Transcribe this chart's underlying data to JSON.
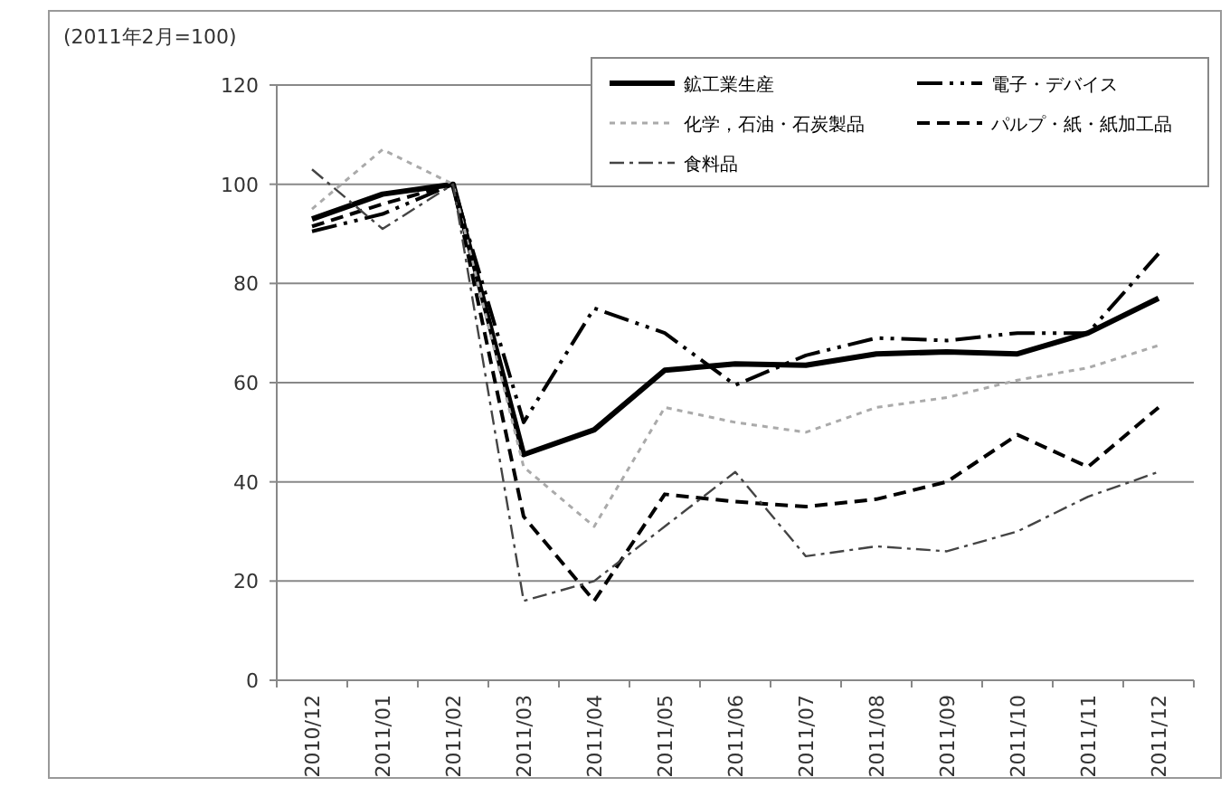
{
  "chart_data": {
    "type": "line",
    "ylabel": "(2011年2月=100)",
    "categories": [
      "2010/12",
      "2011/01",
      "2011/02",
      "2011/03",
      "2011/04",
      "2011/05",
      "2011/06",
      "2011/07",
      "2011/08",
      "2011/09",
      "2011/10",
      "2011/11",
      "2011/12"
    ],
    "series": [
      {
        "name": "鉱工業生産",
        "color": "#000000",
        "line_style": "solid",
        "values": [
          93,
          98,
          100,
          45.5,
          50.5,
          62.5,
          63.8,
          63.5,
          65.8,
          66.2,
          65.8,
          70,
          77
        ]
      },
      {
        "name": "電子・デバイス",
        "color": "#000000",
        "line_style": "dashdotdot",
        "values": [
          90.5,
          94,
          100,
          52,
          75,
          70,
          59.5,
          65.5,
          69,
          68.5,
          70,
          70,
          86
        ]
      },
      {
        "name": "化学，石油・石炭製品",
        "color": "#aaaaaa",
        "line_style": "dotted",
        "values": [
          95,
          107,
          100,
          43,
          31,
          55,
          52,
          50,
          55,
          57,
          60.5,
          63,
          67.5
        ]
      },
      {
        "name": "パルプ・紙・紙加工品",
        "color": "#000000",
        "line_style": "dashed",
        "values": [
          91.5,
          96,
          100,
          33,
          16,
          37.5,
          36,
          35,
          36.5,
          40,
          49.5,
          43,
          55
        ]
      },
      {
        "name": "食料品",
        "color": "#444444",
        "line_style": "dashdot",
        "values": [
          103,
          91,
          100,
          16,
          20,
          31,
          42,
          25,
          27,
          26,
          30,
          37,
          42
        ]
      }
    ],
    "ylim": [
      0,
      120
    ],
    "yticks": [
      0,
      20,
      40,
      60,
      80,
      100,
      120
    ],
    "grid": "y",
    "legend": "top right"
  }
}
